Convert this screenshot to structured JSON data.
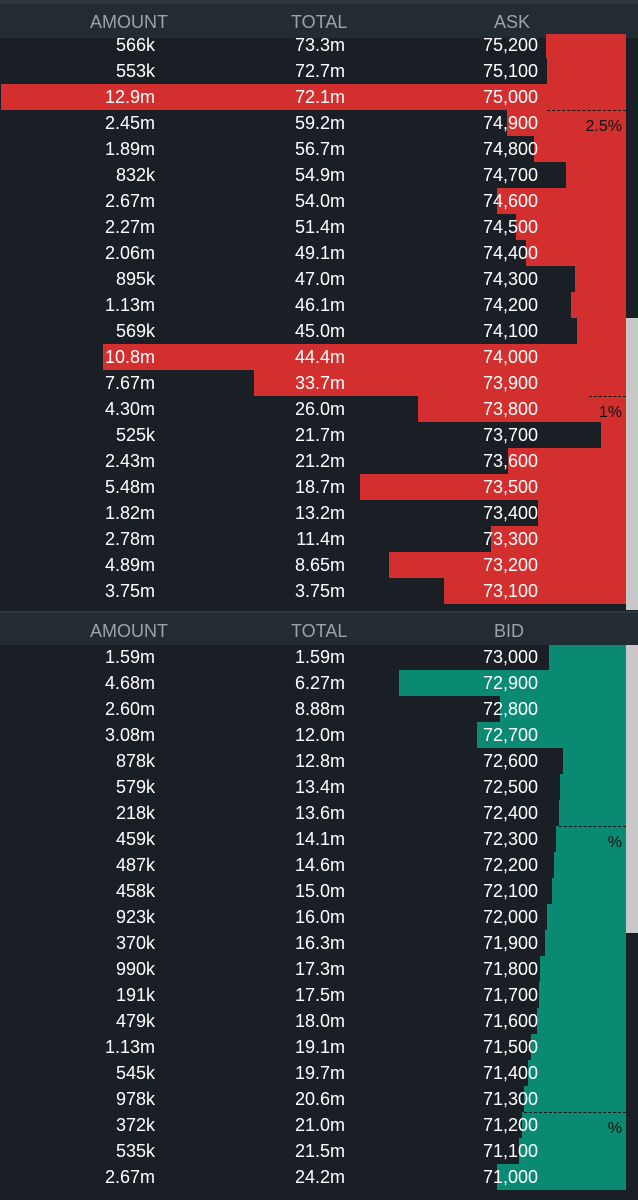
{
  "ask_header": {
    "amount": "AMOUNT",
    "total": "TOTAL",
    "side": "ASK"
  },
  "bid_header": {
    "amount": "AMOUNT",
    "total": "TOTAL",
    "side": "BID"
  },
  "colors": {
    "ask": "#d32f2f",
    "bid": "#0b8a73",
    "bg": "#1a1f26",
    "header": "#232b33"
  },
  "asks": [
    {
      "amount": "566k",
      "total": "73.3m",
      "price": "75,200"
    },
    {
      "amount": "553k",
      "total": "72.7m",
      "price": "75,100"
    },
    {
      "amount": "12.9m",
      "total": "72.1m",
      "price": "75,000"
    },
    {
      "amount": "2.45m",
      "total": "59.2m",
      "price": "74,900"
    },
    {
      "amount": "1.89m",
      "total": "56.7m",
      "price": "74,800"
    },
    {
      "amount": "832k",
      "total": "54.9m",
      "price": "74,700"
    },
    {
      "amount": "2.67m",
      "total": "54.0m",
      "price": "74,600"
    },
    {
      "amount": "2.27m",
      "total": "51.4m",
      "price": "74,500"
    },
    {
      "amount": "2.06m",
      "total": "49.1m",
      "price": "74,400"
    },
    {
      "amount": "895k",
      "total": "47.0m",
      "price": "74,300"
    },
    {
      "amount": "1.13m",
      "total": "46.1m",
      "price": "74,200"
    },
    {
      "amount": "569k",
      "total": "45.0m",
      "price": "74,100"
    },
    {
      "amount": "10.8m",
      "total": "44.4m",
      "price": "74,000"
    },
    {
      "amount": "7.67m",
      "total": "33.7m",
      "price": "73,900"
    },
    {
      "amount": "4.30m",
      "total": "26.0m",
      "price": "73,800"
    },
    {
      "amount": "525k",
      "total": "21.7m",
      "price": "73,700"
    },
    {
      "amount": "2.43m",
      "total": "21.2m",
      "price": "73,600"
    },
    {
      "amount": "5.48m",
      "total": "18.7m",
      "price": "73,500"
    },
    {
      "amount": "1.82m",
      "total": "13.2m",
      "price": "73,400"
    },
    {
      "amount": "2.78m",
      "total": "11.4m",
      "price": "73,300"
    },
    {
      "amount": "4.89m",
      "total": "8.65m",
      "price": "73,200"
    },
    {
      "amount": "3.75m",
      "total": "3.75m",
      "price": "73,100"
    }
  ],
  "bids": [
    {
      "amount": "1.59m",
      "total": "1.59m",
      "price": "73,000"
    },
    {
      "amount": "4.68m",
      "total": "6.27m",
      "price": "72,900"
    },
    {
      "amount": "2.60m",
      "total": "8.88m",
      "price": "72,800"
    },
    {
      "amount": "3.08m",
      "total": "12.0m",
      "price": "72,700"
    },
    {
      "amount": "878k",
      "total": "12.8m",
      "price": "72,600"
    },
    {
      "amount": "579k",
      "total": "13.4m",
      "price": "72,500"
    },
    {
      "amount": "218k",
      "total": "13.6m",
      "price": "72,400"
    },
    {
      "amount": "459k",
      "total": "14.1m",
      "price": "72,300"
    },
    {
      "amount": "487k",
      "total": "14.6m",
      "price": "72,200"
    },
    {
      "amount": "458k",
      "total": "15.0m",
      "price": "72,100"
    },
    {
      "amount": "923k",
      "total": "16.0m",
      "price": "72,000"
    },
    {
      "amount": "370k",
      "total": "16.3m",
      "price": "71,900"
    },
    {
      "amount": "990k",
      "total": "17.3m",
      "price": "71,800"
    },
    {
      "amount": "191k",
      "total": "17.5m",
      "price": "71,700"
    },
    {
      "amount": "479k",
      "total": "18.0m",
      "price": "71,600"
    },
    {
      "amount": "1.13m",
      "total": "19.1m",
      "price": "71,500"
    },
    {
      "amount": "545k",
      "total": "19.7m",
      "price": "71,400"
    },
    {
      "amount": "978k",
      "total": "20.6m",
      "price": "71,300"
    },
    {
      "amount": "372k",
      "total": "21.0m",
      "price": "71,200"
    },
    {
      "amount": "535k",
      "total": "21.5m",
      "price": "71,100"
    },
    {
      "amount": "2.67m",
      "total": "24.2m",
      "price": "71,000"
    }
  ],
  "ask_markers": [
    {
      "label": "2.5%",
      "after_price": "75,000"
    },
    {
      "label": "1%",
      "after_price": "73,900"
    }
  ],
  "bid_markers": [
    {
      "label": "%",
      "after_price": "72,400"
    },
    {
      "label": "%",
      "after_price": "71,300"
    }
  ]
}
